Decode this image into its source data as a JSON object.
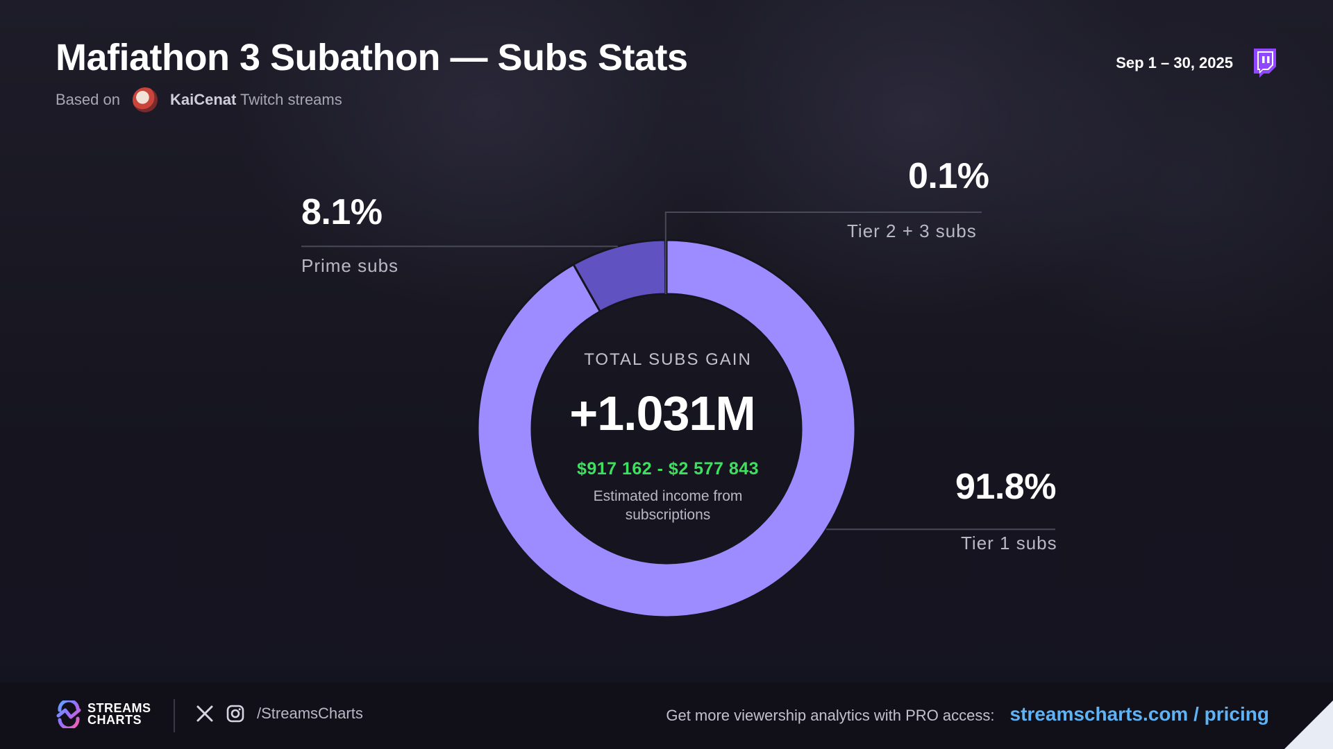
{
  "header": {
    "title": "Mafiathon 3 Subathon — Subs Stats",
    "based_on": "Based on",
    "streamer": "KaiCenat",
    "streams_suffix": "Twitch streams",
    "date_range": "Sep 1 – 30, 2025",
    "platform_icon": "twitch-icon"
  },
  "chart_data": {
    "type": "pie",
    "donut": true,
    "categories": [
      "Tier 1 subs",
      "Prime subs",
      "Tier 2 + 3 subs"
    ],
    "values": [
      91.8,
      8.1,
      0.1
    ],
    "value_labels": [
      "91.8%",
      "8.1%",
      "0.1%"
    ],
    "colors": [
      "#9c8cff",
      "#6152c2",
      "#3a3170"
    ],
    "title": "",
    "center": {
      "title": "TOTAL SUBS GAIN",
      "value": "+1.031M",
      "income": "$917 162 - $2 577 843",
      "note": "Estimated income from subscriptions"
    }
  },
  "footer": {
    "brand_line1": "STREAMS",
    "brand_line2": "CHARTS",
    "social_icons": [
      "x-icon",
      "instagram-icon"
    ],
    "handle": "/StreamsCharts",
    "promo_text": "Get more viewership analytics with PRO access:",
    "promo_link": "streamscharts.com / pricing"
  }
}
